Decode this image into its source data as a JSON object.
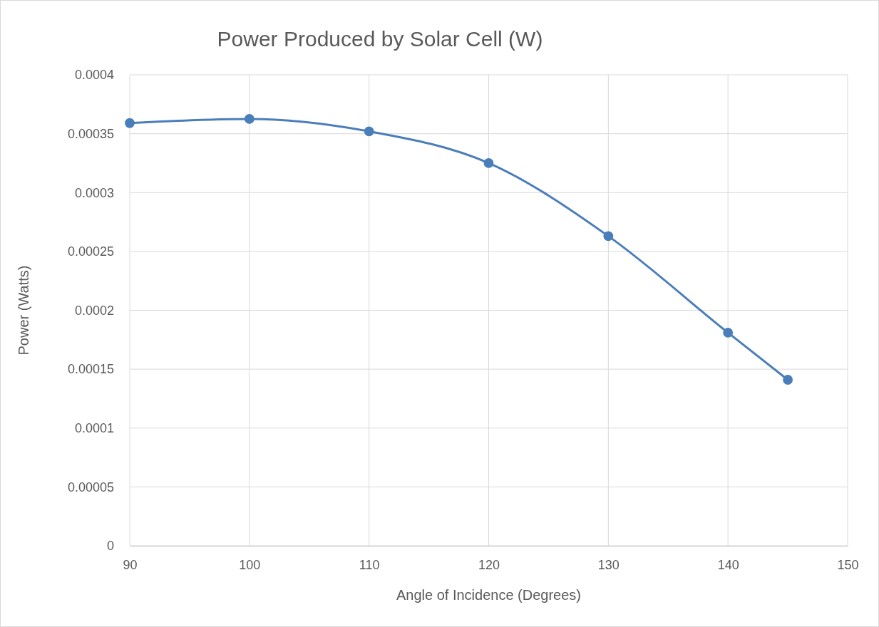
{
  "chart_data": {
    "type": "line",
    "title": "Power Produced by Solar Cell (W)",
    "xlabel": "Angle of Incidence (Degrees)",
    "ylabel": "Power (Watts)",
    "x": [
      90,
      100,
      110,
      120,
      130,
      140,
      145
    ],
    "series": [
      {
        "color": "#4a7ebb",
        "values": [
          0.000359,
          0.0003625,
          0.000352,
          0.000325,
          0.000263,
          0.000181,
          0.000141
        ]
      }
    ],
    "xlim": [
      90,
      150
    ],
    "xticks": [
      90,
      100,
      110,
      120,
      130,
      140,
      150
    ],
    "ylim": [
      0,
      0.0004
    ],
    "yticks": [
      0,
      {
        "value": 5e-05,
        "label": "0.00005"
      },
      0.0001,
      0.00015,
      0.0002,
      0.00025,
      0.0003,
      0.00035,
      0.0004
    ],
    "grid": true,
    "marker": "circle",
    "line_style": "solid"
  }
}
